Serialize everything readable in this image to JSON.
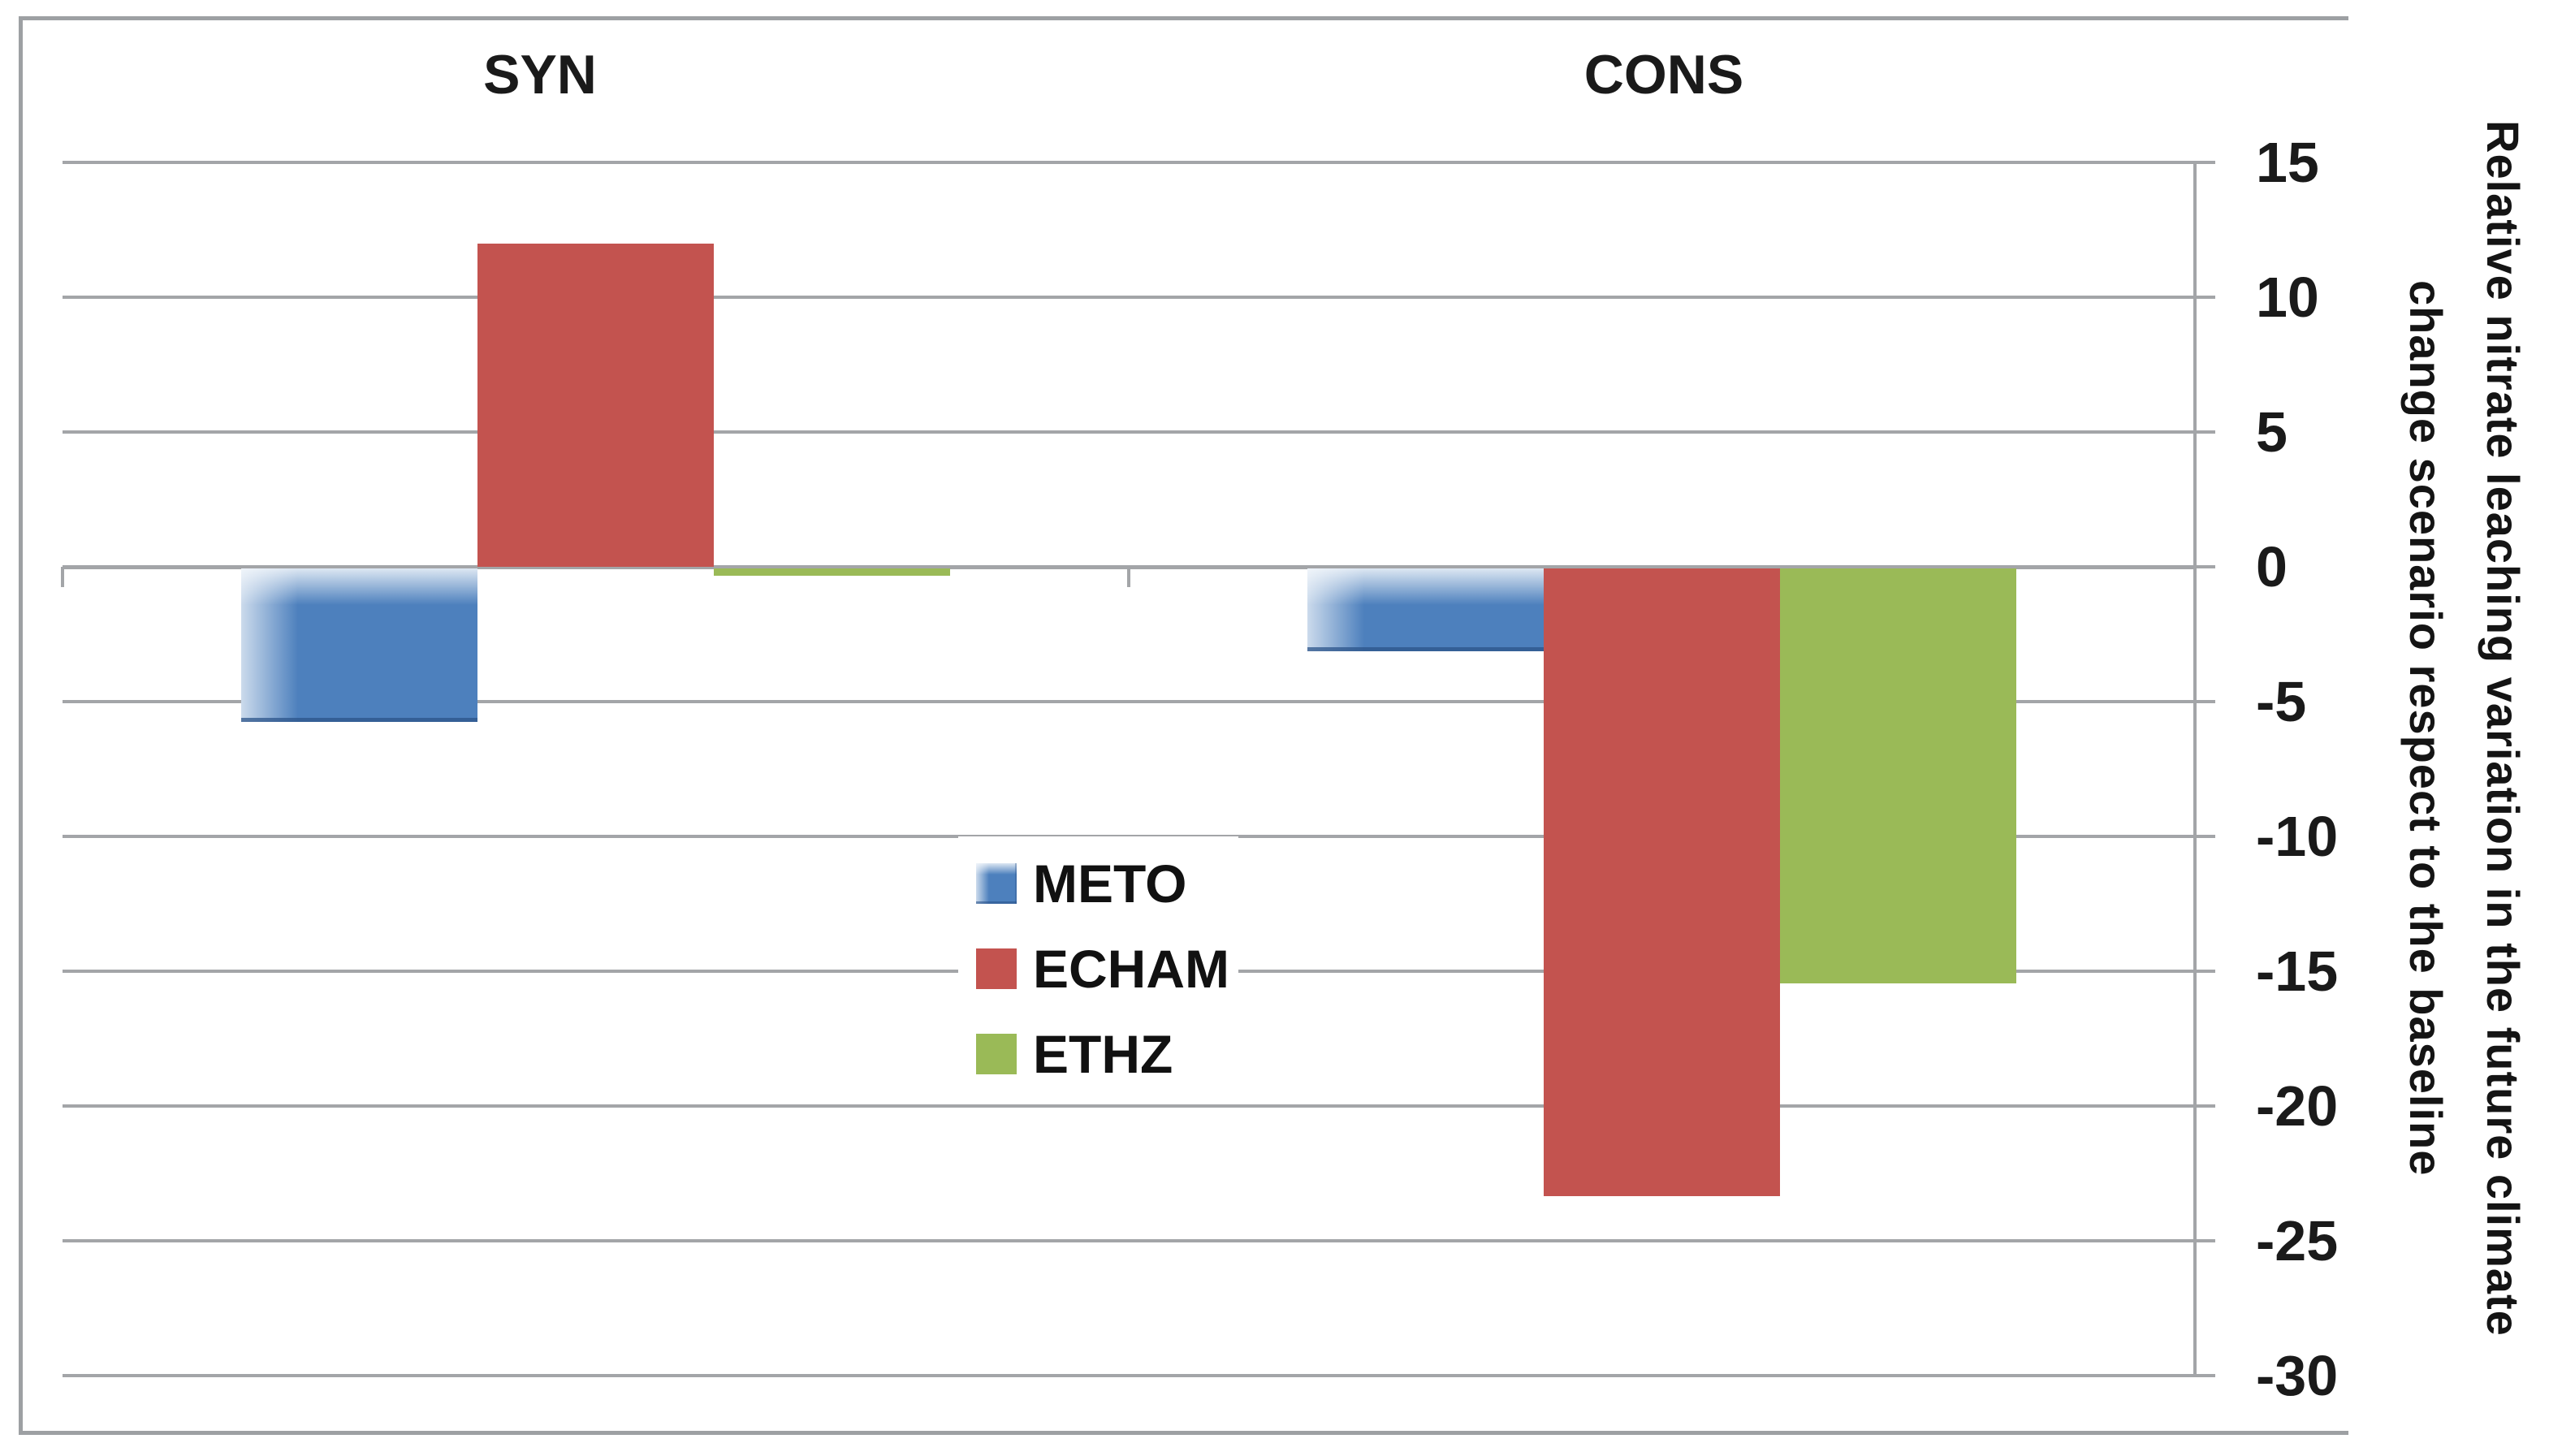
{
  "chart_data": {
    "type": "bar",
    "categories": [
      "SYN",
      "CONS"
    ],
    "series": [
      {
        "name": "METO",
        "color": "#4d80bd",
        "style": "gradient-blue",
        "values": [
          -5.7,
          -3.1
        ]
      },
      {
        "name": "ECHAM",
        "color": "#c3534f",
        "style": "flat",
        "values": [
          12.0,
          -23.3
        ]
      },
      {
        "name": "ETHZ",
        "color": "#9aba57",
        "style": "flat",
        "values": [
          -0.3,
          -15.4
        ]
      }
    ],
    "ylabel_lines": [
      "Relative nitrate leaching variation in the future climate",
      "change scenario respect to the baseline",
      "Relative nitrate leaching variation in the future climate change scenario respect to the baseline"
    ],
    "ylim": [
      -30,
      15
    ],
    "ytick_step": 5,
    "yticks": [
      15,
      10,
      5,
      0,
      -5,
      -10,
      -15,
      -20,
      -25,
      -30
    ],
    "grid": true,
    "legend_position": "center-of-plot",
    "legend_items": [
      "METO",
      "ECHAM",
      "ETHZ"
    ],
    "gap_width_percent": 150,
    "colors": {
      "gridline": "#a3a5a8",
      "frame": "#9da0a3",
      "background": "#ffffff",
      "text": "#1a1a1a"
    }
  }
}
